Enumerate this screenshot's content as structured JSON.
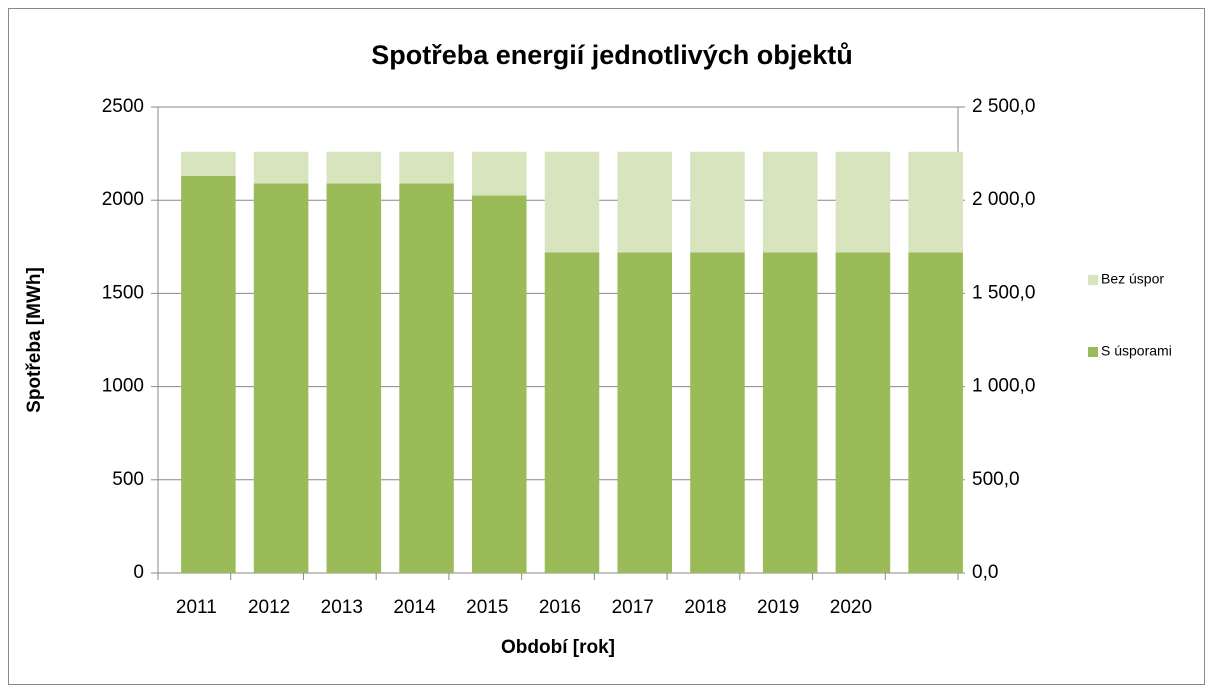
{
  "chart_data": {
    "type": "stacked_bar",
    "title": "Spotřeba energií jednotlivých objektů",
    "ylabel": "Spotřeba [MWh]",
    "xlabel": "Období [rok]",
    "categories": [
      "2011",
      "2012",
      "2013",
      "2014",
      "2015",
      "2016",
      "2017",
      "2018",
      "2019",
      "2020",
      null
    ],
    "series": [
      {
        "name": "S úsporami",
        "color": "#9bbb59",
        "values": [
          2130,
          2090,
          2090,
          2090,
          2025,
          1720,
          1720,
          1720,
          1720,
          1720,
          1720
        ]
      },
      {
        "name": "Bez úspor",
        "color": "#d7e4bd",
        "values": [
          130,
          170,
          170,
          170,
          235,
          540,
          540,
          540,
          540,
          540,
          540
        ]
      }
    ],
    "ylim": [
      0,
      2500
    ],
    "yticks": [
      0,
      500,
      1000,
      1500,
      2000,
      2500
    ],
    "y2lim": [
      0,
      2500
    ],
    "y2ticks": [
      {
        "value": 0,
        "label": "0,0"
      },
      {
        "value": 500,
        "label": "500,0"
      },
      {
        "value": 1000,
        "label": "1 000,0"
      },
      {
        "value": 1500,
        "label": "1 500,0"
      },
      {
        "value": 2000,
        "label": "2 000,0"
      },
      {
        "value": 2500,
        "label": "2 500,0"
      }
    ],
    "grid": true,
    "legend": "right"
  }
}
